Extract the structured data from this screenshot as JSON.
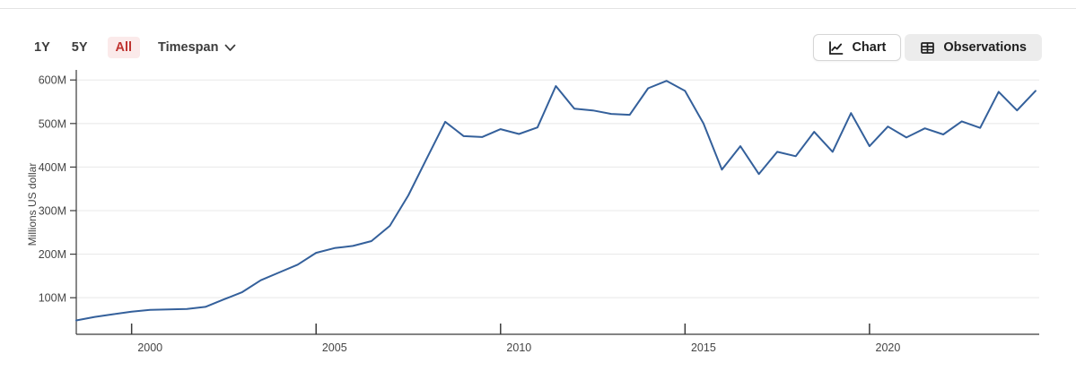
{
  "toolbar": {
    "ranges": [
      {
        "label": "1Y",
        "active": false
      },
      {
        "label": "5Y",
        "active": false
      },
      {
        "label": "All",
        "active": true
      }
    ],
    "timespan_label": "Timespan",
    "view_buttons": [
      {
        "label": "Chart",
        "icon": "line-chart-icon",
        "active": true
      },
      {
        "label": "Observations",
        "icon": "table-icon",
        "active": false
      }
    ]
  },
  "colors": {
    "accent_red": "#bf3330",
    "accent_red_bg": "#fbeaea",
    "line": "#34609b",
    "grid": "#e8e8e8",
    "axis": "#3a3a3a",
    "tick_text": "#454545"
  },
  "chart_data": {
    "type": "line",
    "title": "",
    "xlabel": "",
    "ylabel": "Millions US dollar",
    "legend": "none",
    "grid": "horizontal-only",
    "xlim": [
      1998.5,
      2024.6
    ],
    "ylim": [
      16,
      619
    ],
    "x_ticks": [
      {
        "v": 2000,
        "label": "2000"
      },
      {
        "v": 2005,
        "label": "2005"
      },
      {
        "v": 2010,
        "label": "2010"
      },
      {
        "v": 2015,
        "label": "2015"
      },
      {
        "v": 2020,
        "label": "2020"
      }
    ],
    "y_ticks": [
      {
        "v": 100,
        "label": "100M"
      },
      {
        "v": 200,
        "label": "200M"
      },
      {
        "v": 300,
        "label": "300M"
      },
      {
        "v": 400,
        "label": "400M"
      },
      {
        "v": 500,
        "label": "500M"
      },
      {
        "v": 600,
        "label": "600M"
      }
    ],
    "series": [
      {
        "name": "value-millions-usd",
        "points": [
          [
            1998.5,
            48
          ],
          [
            1999.0,
            56
          ],
          [
            1999.5,
            62
          ],
          [
            2000.0,
            68
          ],
          [
            2000.5,
            72
          ],
          [
            2001.0,
            73
          ],
          [
            2001.5,
            74
          ],
          [
            2002.0,
            79
          ],
          [
            2002.5,
            96
          ],
          [
            2003.0,
            113
          ],
          [
            2003.5,
            140
          ],
          [
            2004.0,
            158
          ],
          [
            2004.5,
            176
          ],
          [
            2005.0,
            203
          ],
          [
            2005.5,
            214
          ],
          [
            2006.0,
            219
          ],
          [
            2006.5,
            230
          ],
          [
            2007.0,
            265
          ],
          [
            2007.5,
            335
          ],
          [
            2008.0,
            420
          ],
          [
            2008.5,
            504
          ],
          [
            2009.0,
            471
          ],
          [
            2009.5,
            469
          ],
          [
            2010.0,
            487
          ],
          [
            2010.5,
            476
          ],
          [
            2011.0,
            491
          ],
          [
            2011.5,
            586
          ],
          [
            2012.0,
            534
          ],
          [
            2012.5,
            530
          ],
          [
            2013.0,
            522
          ],
          [
            2013.5,
            520
          ],
          [
            2014.0,
            581
          ],
          [
            2014.5,
            598
          ],
          [
            2015.0,
            575
          ],
          [
            2015.5,
            500
          ],
          [
            2016.0,
            394
          ],
          [
            2016.5,
            448
          ],
          [
            2017.0,
            384
          ],
          [
            2017.5,
            435
          ],
          [
            2018.0,
            425
          ],
          [
            2018.5,
            481
          ],
          [
            2019.0,
            435
          ],
          [
            2019.5,
            524
          ],
          [
            2020.0,
            448
          ],
          [
            2020.5,
            493
          ],
          [
            2021.0,
            468
          ],
          [
            2021.5,
            489
          ],
          [
            2022.0,
            475
          ],
          [
            2022.5,
            505
          ],
          [
            2023.0,
            490
          ],
          [
            2023.5,
            573
          ],
          [
            2024.0,
            530
          ],
          [
            2024.5,
            575
          ]
        ]
      }
    ]
  }
}
